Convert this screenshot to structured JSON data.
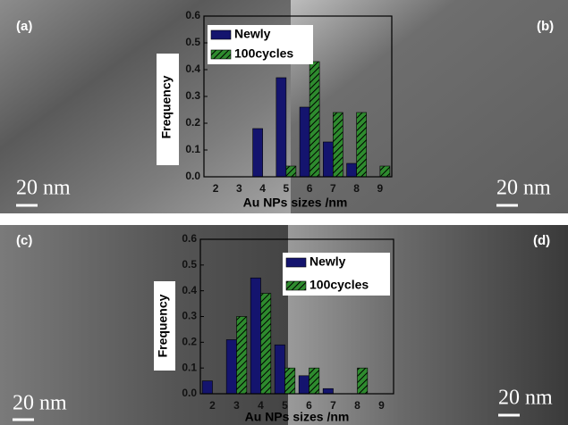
{
  "panels": [
    "(a)",
    "(b)",
    "(c)",
    "(d)"
  ],
  "scale_bars": [
    "20 nm",
    "20 nm",
    "20 nm",
    "20 nm"
  ],
  "chart_data": [
    {
      "type": "bar",
      "x_label": "Au NPs sizes /nm",
      "y_label": "Frequency",
      "categories": [
        "2",
        "3",
        "4",
        "5",
        "6",
        "7",
        "8",
        "9"
      ],
      "series": [
        {
          "name": "Newly",
          "color": "#14146e",
          "values": [
            0,
            0,
            0.18,
            0.37,
            0.26,
            0.13,
            0.05,
            0
          ]
        },
        {
          "name": "100cycles",
          "color": "#2e8b2e",
          "values": [
            0,
            0,
            0,
            0.04,
            0.43,
            0.24,
            0.24,
            0.04
          ]
        }
      ],
      "ylim": [
        0,
        0.6
      ],
      "yticks": [
        {
          "value": 0,
          "label": "0.0"
        },
        0.1,
        0.2,
        0.3,
        0.4,
        0.5,
        0.6
      ]
    },
    {
      "type": "bar",
      "x_label": "Au NPs sizes /nm",
      "y_label": "Frequency",
      "categories": [
        "2",
        "3",
        "4",
        "5",
        "6",
        "7",
        "8",
        "9"
      ],
      "series": [
        {
          "name": "Newly",
          "color": "#14146e",
          "values": [
            0.05,
            0.21,
            0.45,
            0.19,
            0.07,
            0.02,
            0,
            0
          ]
        },
        {
          "name": "100cycles",
          "color": "#2e8b2e",
          "values": [
            0,
            0.3,
            0.39,
            0.1,
            0.1,
            0,
            0.1,
            0
          ]
        }
      ],
      "ylim": [
        0,
        0.6
      ],
      "yticks": [
        {
          "value": 0,
          "label": "0.0"
        },
        0.1,
        0.2,
        0.3,
        0.4,
        0.5,
        0.6
      ]
    }
  ]
}
